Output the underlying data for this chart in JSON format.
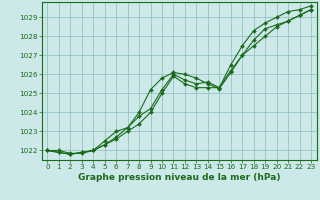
{
  "title": "Graphe pression niveau de la mer (hPa)",
  "xlabel": "Graphe pression niveau de la mer (hPa)",
  "background_color": "#cce8e8",
  "plot_bg_color": "#cce8e8",
  "grid_color": "#8bbcbc",
  "line_color": "#1a6b1a",
  "marker_color": "#1a6b1a",
  "x": [
    0,
    1,
    2,
    3,
    4,
    5,
    6,
    7,
    8,
    9,
    10,
    11,
    12,
    13,
    14,
    15,
    16,
    17,
    18,
    19,
    20,
    21,
    22,
    23
  ],
  "line1": [
    1022.0,
    1021.9,
    1021.8,
    1021.9,
    1022.0,
    1022.3,
    1022.6,
    1023.0,
    1023.4,
    1024.0,
    1025.0,
    1025.9,
    1025.5,
    1025.3,
    1025.3,
    1025.3,
    1026.2,
    1027.0,
    1027.8,
    1028.4,
    1028.6,
    1028.8,
    1029.1,
    1029.4
  ],
  "line2": [
    1022.0,
    1021.9,
    1021.8,
    1021.9,
    1022.0,
    1022.3,
    1022.7,
    1023.2,
    1023.8,
    1024.2,
    1025.2,
    1026.0,
    1025.7,
    1025.5,
    1025.6,
    1025.3,
    1026.5,
    1027.5,
    1028.3,
    1028.7,
    1029.0,
    1029.3,
    1029.4,
    1029.6
  ],
  "line3": [
    1022.0,
    1022.0,
    1021.85,
    1021.85,
    1022.0,
    1022.5,
    1023.0,
    1023.2,
    1024.0,
    1025.2,
    1025.8,
    1026.1,
    1026.0,
    1025.8,
    1025.5,
    1025.25,
    1026.1,
    1027.0,
    1027.5,
    1028.0,
    1028.5,
    1028.8,
    1029.1,
    1029.4
  ],
  "ylim": [
    1021.5,
    1029.8
  ],
  "yticks": [
    1022,
    1023,
    1024,
    1025,
    1026,
    1027,
    1028,
    1029
  ],
  "xlim": [
    -0.5,
    23.5
  ],
  "xticks": [
    0,
    1,
    2,
    3,
    4,
    5,
    6,
    7,
    8,
    9,
    10,
    11,
    12,
    13,
    14,
    15,
    16,
    17,
    18,
    19,
    20,
    21,
    22,
    23
  ],
  "marker": "D",
  "marker_size": 2.0,
  "line_width": 0.8,
  "tick_label_fontsize": 5.2,
  "xlabel_fontsize": 6.5,
  "xlabel_fontweight": "bold"
}
